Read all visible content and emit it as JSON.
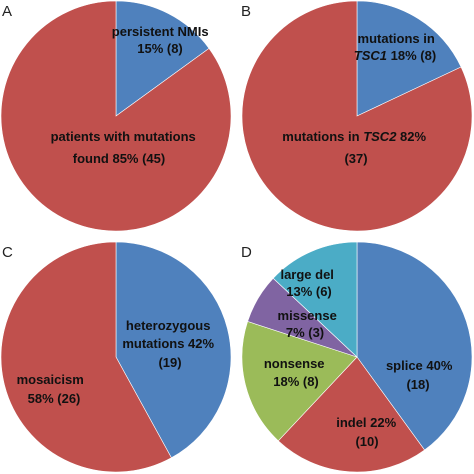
{
  "chart_data": [
    {
      "type": "pie",
      "panel": "A",
      "color_map": {
        "persistent": "#4f81bd",
        "patients": "#c0504d"
      },
      "slices": [
        {
          "key": "persistent",
          "label": "persistent NMIs",
          "percent": 15,
          "count": 8,
          "value_text": "15% (8)"
        },
        {
          "key": "patients",
          "label": "patients with mutations",
          "label2": "found 85% (45)",
          "percent": 85,
          "count": 45
        }
      ]
    },
    {
      "type": "pie",
      "panel": "B",
      "color_map": {
        "tsc1": "#4f81bd",
        "tsc2": "#c0504d"
      },
      "slices": [
        {
          "key": "tsc1",
          "label": "mutations in",
          "gene": "TSC1",
          "value_text": "18% (8)",
          "percent": 18,
          "count": 8
        },
        {
          "key": "tsc2",
          "label": "mutations in",
          "gene": "TSC2",
          "value_text": "82%",
          "count_text": "(37)",
          "percent": 82,
          "count": 37
        }
      ]
    },
    {
      "type": "pie",
      "panel": "C",
      "color_map": {
        "hetero": "#4f81bd",
        "mosaic": "#c0504d"
      },
      "slices": [
        {
          "key": "hetero",
          "label": "heterozygous",
          "label2": "mutations 42%",
          "count_text": "(19)",
          "percent": 42,
          "count": 19
        },
        {
          "key": "mosaic",
          "label": "mosaicism",
          "label2": "58% (26)",
          "percent": 58,
          "count": 26
        }
      ]
    },
    {
      "type": "pie",
      "panel": "D",
      "color_map": {
        "splice": "#4f81bd",
        "indel": "#c0504d",
        "nonsense": "#9bbb59",
        "missense": "#8064a2",
        "largedel": "#4bacc6"
      },
      "slices": [
        {
          "key": "splice",
          "label": "splice 40%",
          "count_text": "(18)",
          "percent": 40,
          "count": 18
        },
        {
          "key": "indel",
          "label": "indel 22%",
          "count_text": "(10)",
          "percent": 22,
          "count": 10
        },
        {
          "key": "nonsense",
          "label": "nonsense",
          "label2": "18% (8)",
          "percent": 18,
          "count": 8
        },
        {
          "key": "missense",
          "label": "missense",
          "label2": "7% (3)",
          "percent": 7,
          "count": 3
        },
        {
          "key": "largedel",
          "label": "large del",
          "label2": "13% (6)",
          "percent": 13,
          "count": 6
        }
      ]
    }
  ]
}
